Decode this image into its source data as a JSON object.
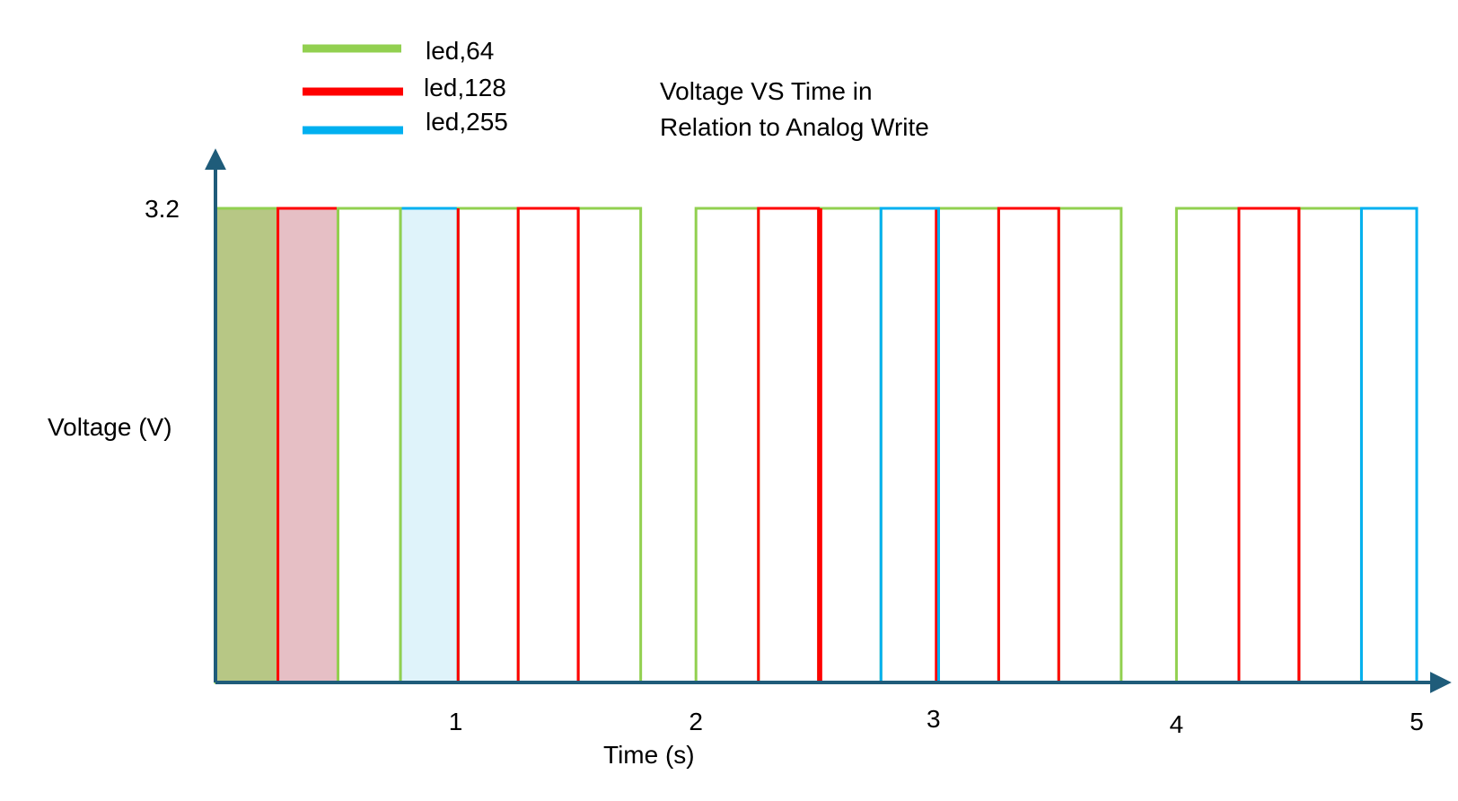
{
  "chart_data": {
    "type": "line",
    "title": "Voltage VS Time in Relation to Analog Write",
    "title_lines": [
      "Voltage VS Time in",
      "Relation to Analog Write"
    ],
    "xlabel": "Time (s)",
    "ylabel": "Voltage (V)",
    "x_ticks": [
      {
        "value": 1,
        "label": "1"
      },
      {
        "value": 2,
        "label": "2"
      },
      {
        "value": 3,
        "label": "3"
      },
      {
        "value": 4,
        "label": "4"
      },
      {
        "value": 5,
        "label": "5"
      }
    ],
    "y_ticks": [
      {
        "value": 3.2,
        "label": "3.2"
      }
    ],
    "xlim": [
      0,
      5.15
    ],
    "ylim": [
      0,
      4.0
    ],
    "legend_position": "top-left",
    "grid": false,
    "series": [
      {
        "name": "led,64",
        "color": "#92d050",
        "pulses": [
          {
            "start": 0.0,
            "end": 0.26,
            "filled": true,
            "fill": "#b7c785"
          },
          {
            "start": 0.51,
            "end": 0.77,
            "filled": false
          },
          {
            "start": 1.01,
            "end": 1.26,
            "filled": false
          },
          {
            "start": 1.51,
            "end": 1.77,
            "filled": false
          },
          {
            "start": 2.0,
            "end": 2.26,
            "filled": false
          },
          {
            "start": 2.51,
            "end": 2.77,
            "filled": false
          },
          {
            "start": 3.01,
            "end": 3.26,
            "filled": false
          },
          {
            "start": 3.51,
            "end": 3.77,
            "filled": false
          },
          {
            "start": 4.0,
            "end": 4.26,
            "filled": false
          },
          {
            "start": 4.51,
            "end": 4.77,
            "filled": false
          }
        ],
        "level": 3.2
      },
      {
        "name": "led,128",
        "color": "#ff0000",
        "pulses": [
          {
            "start": 0.26,
            "end": 0.51,
            "filled": true,
            "fill": "#e6bfc5"
          },
          {
            "start": 1.26,
            "end": 1.51,
            "filled": false
          },
          {
            "start": 2.26,
            "end": 2.51,
            "filled": false
          },
          {
            "start": 3.26,
            "end": 3.51,
            "filled": false
          },
          {
            "start": 4.26,
            "end": 4.51,
            "filled": false
          }
        ],
        "edges": [
          1.01,
          1.51,
          2.52,
          3.0,
          4.51
        ],
        "level": 3.2
      },
      {
        "name": "led,255",
        "color": "#00b0f0",
        "pulses": [
          {
            "start": 0.77,
            "end": 1.01,
            "filled": true,
            "fill": "#dff3fa"
          },
          {
            "start": 2.77,
            "end": 3.01,
            "filled": false
          },
          {
            "start": 4.77,
            "end": 5.0,
            "filled": false
          }
        ],
        "level": 3.2
      }
    ]
  },
  "colors": {
    "axis": "#1f5c7a",
    "green": "#92d050",
    "red": "#ff0000",
    "blue": "#00b0f0"
  }
}
